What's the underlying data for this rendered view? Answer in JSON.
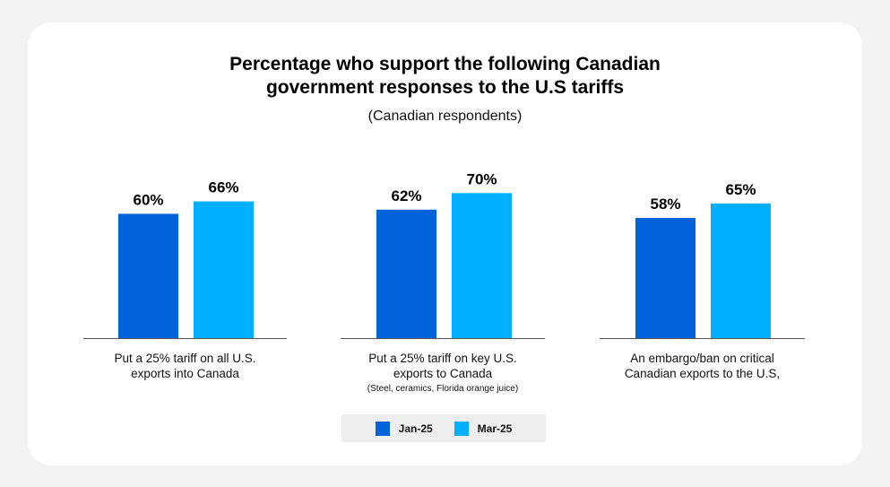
{
  "chart_data": {
    "type": "bar",
    "title": "Percentage who support the following Canadian\ngovernment responses to the U.S tariffs",
    "subtitle": "(Canadian respondents)",
    "categories": [
      {
        "label": "Put a 25% tariff on all U.S.\nexports into Canada",
        "note": ""
      },
      {
        "label": "Put a 25% tariff on key U.S.\nexports to Canada",
        "note": "(Steel, ceramics, Florida orange juice)"
      },
      {
        "label": "An embargo/ban on critical\nCanadian exports to the U.S,",
        "note": ""
      }
    ],
    "series": [
      {
        "name": "Jan-25",
        "color": "#0063d9",
        "values": [
          60,
          62,
          58
        ],
        "labels": [
          "60%",
          "62%",
          "58%"
        ]
      },
      {
        "name": "Mar-25",
        "color": "#00b0ff",
        "values": [
          66,
          70,
          65
        ],
        "labels": [
          "66%",
          "70%",
          "65%"
        ]
      }
    ],
    "ylim": [
      0,
      100
    ],
    "grid": false,
    "legend_position": "bottom"
  }
}
